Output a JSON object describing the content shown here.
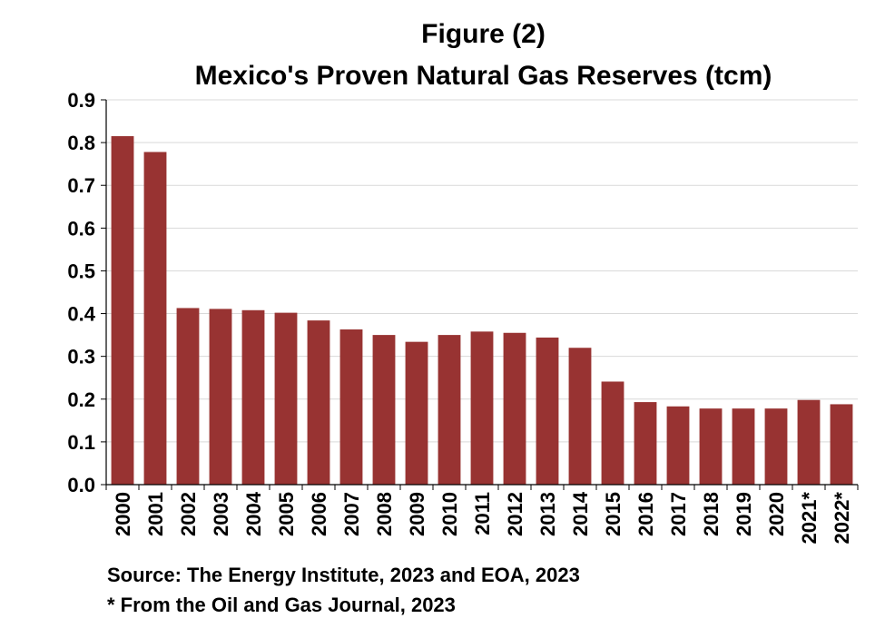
{
  "chart_data": {
    "type": "bar",
    "title": "Figure (2)",
    "subtitle": "Mexico's Proven Natural Gas Reserves (tcm)",
    "categories": [
      "2000",
      "2001",
      "2002",
      "2003",
      "2004",
      "2005",
      "2006",
      "2007",
      "2008",
      "2009",
      "2010",
      "2011",
      "2012",
      "2013",
      "2014",
      "2015",
      "2016",
      "2017",
      "2018",
      "2019",
      "2020",
      "2021*",
      "2022*"
    ],
    "values": [
      0.815,
      0.778,
      0.413,
      0.411,
      0.408,
      0.402,
      0.384,
      0.363,
      0.35,
      0.334,
      0.35,
      0.358,
      0.355,
      0.344,
      0.32,
      0.241,
      0.193,
      0.183,
      0.178,
      0.178,
      0.178,
      0.198,
      0.188
    ],
    "ylim": [
      0,
      0.9
    ],
    "yticks": [
      "0.0",
      "0.1",
      "0.2",
      "0.3",
      "0.4",
      "0.5",
      "0.6",
      "0.7",
      "0.8",
      "0.9"
    ],
    "xlabel": "",
    "ylabel": "",
    "grid": true,
    "legend": "none",
    "bar_color": "#983332"
  },
  "notes": {
    "source": "Source: The Energy Institute, 2023 and EOA, 2023",
    "footnote": "* From the Oil and Gas Journal, 2023"
  }
}
